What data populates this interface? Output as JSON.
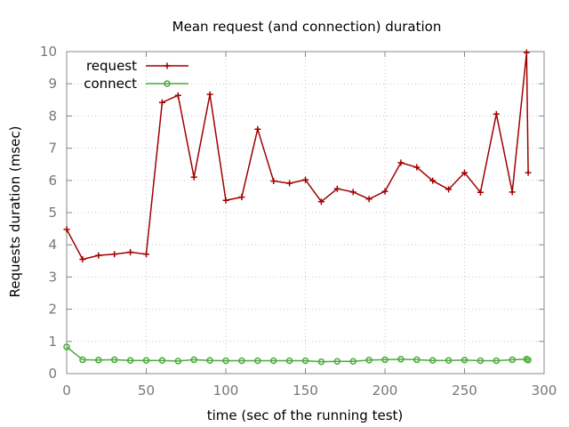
{
  "chart_data": {
    "type": "line",
    "title": "Mean request (and connection) duration",
    "xlabel": "time (sec of the running test)",
    "ylabel": "Requests duration (msec)",
    "xlim": [
      0,
      300
    ],
    "ylim": [
      0,
      10
    ],
    "xticks": [
      0,
      50,
      100,
      150,
      200,
      250,
      300
    ],
    "yticks": [
      0,
      1,
      2,
      3,
      4,
      5,
      6,
      7,
      8,
      9,
      10
    ],
    "grid": true,
    "legend_position": "top-left",
    "series": [
      {
        "name": "request",
        "color": "#a00000",
        "marker": "plus",
        "points": [
          [
            0,
            4.48
          ],
          [
            10,
            3.55
          ],
          [
            20,
            3.67
          ],
          [
            30,
            3.71
          ],
          [
            40,
            3.77
          ],
          [
            50,
            3.71
          ],
          [
            60,
            8.42
          ],
          [
            70,
            8.64
          ],
          [
            80,
            6.1
          ],
          [
            90,
            8.67
          ],
          [
            100,
            5.38
          ],
          [
            110,
            5.48
          ],
          [
            120,
            7.59
          ],
          [
            130,
            5.98
          ],
          [
            140,
            5.91
          ],
          [
            150,
            6.02
          ],
          [
            160,
            5.34
          ],
          [
            170,
            5.74
          ],
          [
            180,
            5.64
          ],
          [
            190,
            5.42
          ],
          [
            200,
            5.66
          ],
          [
            210,
            6.55
          ],
          [
            220,
            6.41
          ],
          [
            230,
            5.99
          ],
          [
            240,
            5.72
          ],
          [
            250,
            6.24
          ],
          [
            260,
            5.63
          ],
          [
            270,
            8.06
          ],
          [
            280,
            5.64
          ],
          [
            289,
            9.97
          ],
          [
            290,
            6.24
          ]
        ]
      },
      {
        "name": "connect",
        "color": "#4aaa3a",
        "marker": "circle",
        "points": [
          [
            0,
            0.83
          ],
          [
            10,
            0.43
          ],
          [
            20,
            0.42
          ],
          [
            30,
            0.43
          ],
          [
            40,
            0.41
          ],
          [
            50,
            0.41
          ],
          [
            60,
            0.41
          ],
          [
            70,
            0.39
          ],
          [
            80,
            0.43
          ],
          [
            90,
            0.41
          ],
          [
            100,
            0.4
          ],
          [
            110,
            0.4
          ],
          [
            120,
            0.4
          ],
          [
            130,
            0.4
          ],
          [
            140,
            0.4
          ],
          [
            150,
            0.4
          ],
          [
            160,
            0.37
          ],
          [
            170,
            0.38
          ],
          [
            180,
            0.38
          ],
          [
            190,
            0.42
          ],
          [
            200,
            0.43
          ],
          [
            210,
            0.45
          ],
          [
            220,
            0.43
          ],
          [
            230,
            0.41
          ],
          [
            240,
            0.41
          ],
          [
            250,
            0.42
          ],
          [
            260,
            0.4
          ],
          [
            270,
            0.4
          ],
          [
            280,
            0.43
          ],
          [
            289,
            0.45
          ],
          [
            290,
            0.42
          ]
        ]
      }
    ]
  }
}
